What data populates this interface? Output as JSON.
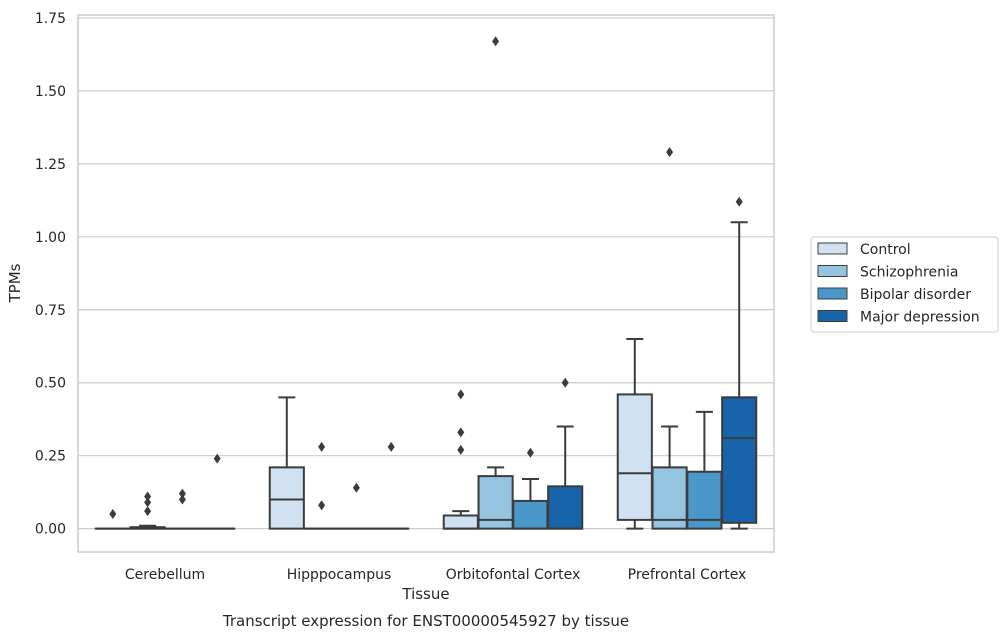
{
  "chart_data": {
    "type": "box",
    "xlabel": "Tissue",
    "ylabel": "TPMs",
    "caption": "Transcript expression for ENST00000545927 by tissue",
    "ylim": [
      -0.08,
      1.76
    ],
    "yticks": [
      0.0,
      0.25,
      0.5,
      0.75,
      1.0,
      1.25,
      1.5,
      1.75
    ],
    "ytick_labels": [
      "0.00",
      "0.25",
      "0.50",
      "0.75",
      "1.00",
      "1.25",
      "1.50",
      "1.75"
    ],
    "grid": "horizontal",
    "legend_position": "right",
    "categories": [
      "Cerebellum",
      "Hipppocampus",
      "Orbitofontal Cortex",
      "Prefrontal Cortex"
    ],
    "series": [
      {
        "name": "Control",
        "color": "#d0e1f2",
        "boxes": [
          {
            "q1": 0.0,
            "median": 0.0,
            "q3": 0.0,
            "whisker_low": 0.0,
            "whisker_high": 0.0,
            "outliers": [
              0.05
            ]
          },
          {
            "q1": 0.0,
            "median": 0.1,
            "q3": 0.21,
            "whisker_low": 0.0,
            "whisker_high": 0.45,
            "outliers": []
          },
          {
            "q1": 0.0,
            "median": 0.0,
            "q3": 0.045,
            "whisker_low": 0.0,
            "whisker_high": 0.06,
            "outliers": [
              0.27,
              0.33,
              0.46
            ]
          },
          {
            "q1": 0.03,
            "median": 0.19,
            "q3": 0.46,
            "whisker_low": 0.0,
            "whisker_high": 0.65,
            "outliers": []
          }
        ]
      },
      {
        "name": "Schizophrenia",
        "color": "#94c4df",
        "boxes": [
          {
            "q1": 0.0,
            "median": 0.0,
            "q3": 0.005,
            "whisker_low": 0.0,
            "whisker_high": 0.01,
            "outliers": [
              0.06,
              0.09,
              0.11
            ]
          },
          {
            "q1": 0.0,
            "median": 0.0,
            "q3": 0.0,
            "whisker_low": 0.0,
            "whisker_high": 0.0,
            "outliers": [
              0.08,
              0.28
            ]
          },
          {
            "q1": 0.0,
            "median": 0.03,
            "q3": 0.18,
            "whisker_low": 0.0,
            "whisker_high": 0.21,
            "outliers": [
              1.67
            ]
          },
          {
            "q1": 0.0,
            "median": 0.03,
            "q3": 0.21,
            "whisker_low": 0.0,
            "whisker_high": 0.35,
            "outliers": [
              1.29
            ]
          }
        ]
      },
      {
        "name": "Bipolar disorder",
        "color": "#4a98c9",
        "boxes": [
          {
            "q1": 0.0,
            "median": 0.0,
            "q3": 0.0,
            "whisker_low": 0.0,
            "whisker_high": 0.0,
            "outliers": [
              0.1,
              0.12
            ]
          },
          {
            "q1": 0.0,
            "median": 0.0,
            "q3": 0.0,
            "whisker_low": 0.0,
            "whisker_high": 0.0,
            "outliers": [
              0.14
            ]
          },
          {
            "q1": 0.0,
            "median": 0.0,
            "q3": 0.095,
            "whisker_low": 0.0,
            "whisker_high": 0.17,
            "outliers": [
              0.26
            ]
          },
          {
            "q1": 0.0,
            "median": 0.03,
            "q3": 0.195,
            "whisker_low": 0.0,
            "whisker_high": 0.4,
            "outliers": []
          }
        ]
      },
      {
        "name": "Major depression",
        "color": "#1764ab",
        "boxes": [
          {
            "q1": 0.0,
            "median": 0.0,
            "q3": 0.0,
            "whisker_low": 0.0,
            "whisker_high": 0.0,
            "outliers": [
              0.24
            ]
          },
          {
            "q1": 0.0,
            "median": 0.0,
            "q3": 0.0,
            "whisker_low": 0.0,
            "whisker_high": 0.0,
            "outliers": [
              0.28
            ]
          },
          {
            "q1": 0.0,
            "median": 0.0,
            "q3": 0.145,
            "whisker_low": 0.0,
            "whisker_high": 0.35,
            "outliers": [
              0.5
            ]
          },
          {
            "q1": 0.02,
            "median": 0.31,
            "q3": 0.45,
            "whisker_low": 0.0,
            "whisker_high": 1.05,
            "outliers": [
              1.12
            ]
          }
        ]
      }
    ]
  }
}
